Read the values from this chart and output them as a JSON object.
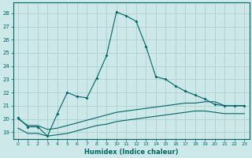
{
  "xlabel": "Humidex (Indice chaleur)",
  "ylabel": "",
  "bg_color": "#cce8e8",
  "grid_color": "#aacccc",
  "line_color": "#006666",
  "xlim": [
    -0.5,
    23.5
  ],
  "ylim": [
    18.5,
    28.8
  ],
  "yticks": [
    19,
    20,
    21,
    22,
    23,
    24,
    25,
    26,
    27,
    28
  ],
  "xticks": [
    0,
    1,
    2,
    3,
    4,
    5,
    6,
    7,
    8,
    9,
    10,
    11,
    12,
    13,
    14,
    15,
    16,
    17,
    18,
    19,
    20,
    21,
    22,
    23
  ],
  "line1_x": [
    0,
    1,
    2,
    3,
    4,
    5,
    6,
    7,
    8,
    9,
    10,
    11,
    12,
    13,
    14,
    15,
    16,
    17,
    18,
    19,
    20,
    21,
    22,
    23
  ],
  "line1_y": [
    20.1,
    19.4,
    19.4,
    18.7,
    20.4,
    22.0,
    21.7,
    21.6,
    23.1,
    24.8,
    28.1,
    27.8,
    27.4,
    25.5,
    23.2,
    23.0,
    22.5,
    22.1,
    21.8,
    21.5,
    21.1,
    21.0,
    21.0,
    21.0
  ],
  "line2_x": [
    0,
    1,
    2,
    3,
    4,
    5,
    6,
    7,
    8,
    9,
    10,
    11,
    12,
    13,
    14,
    15,
    16,
    17,
    18,
    19,
    20,
    21,
    22,
    23
  ],
  "line2_y": [
    20.0,
    19.5,
    19.5,
    19.2,
    19.3,
    19.5,
    19.7,
    19.9,
    20.1,
    20.3,
    20.5,
    20.6,
    20.7,
    20.8,
    20.9,
    21.0,
    21.1,
    21.2,
    21.2,
    21.3,
    21.3,
    21.0,
    21.0,
    21.0
  ],
  "line3_x": [
    0,
    1,
    2,
    3,
    4,
    5,
    6,
    7,
    8,
    9,
    10,
    11,
    12,
    13,
    14,
    15,
    16,
    17,
    18,
    19,
    20,
    21,
    22,
    23
  ],
  "line3_y": [
    19.3,
    18.9,
    18.9,
    18.7,
    18.8,
    18.9,
    19.1,
    19.3,
    19.5,
    19.6,
    19.8,
    19.9,
    20.0,
    20.1,
    20.2,
    20.3,
    20.4,
    20.5,
    20.6,
    20.6,
    20.5,
    20.4,
    20.4,
    20.4
  ]
}
